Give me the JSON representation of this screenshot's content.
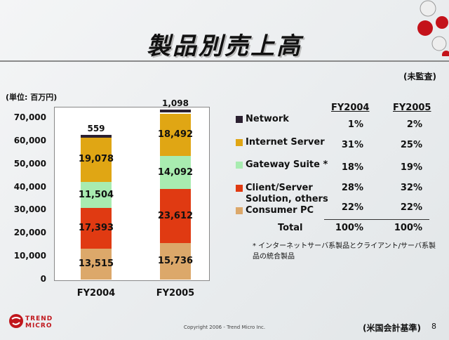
{
  "slide": {
    "title": "製品別売上高",
    "unaudited": "(未監査)",
    "unit": "(単位: 百万円)",
    "footnote": "* インターネットサーバ系製品とクライアント/サーバ系製品の統合製品",
    "basis": "(米国会計基準)",
    "page": "8",
    "copyright": "Copyright 2006 - Trend Micro Inc.",
    "logo_line1": "TREND",
    "logo_line2": "MICRO"
  },
  "colors": {
    "Network": "#2b2030",
    "Internet Server": "#e0a614",
    "Gateway Suite": "#a8ecb0",
    "Client/Server Solution, others": "#e03a12",
    "Consumer PC": "#dca86a"
  },
  "table": {
    "headers": [
      "FY2004",
      "FY2005"
    ],
    "rows": [
      {
        "label": "Network",
        "pct": [
          "1%",
          "2%"
        ]
      },
      {
        "label": "Internet Server",
        "pct": [
          "31%",
          "25%"
        ]
      },
      {
        "label": "Gateway Suite *",
        "pct": [
          "18%",
          "19%"
        ]
      },
      {
        "label": "Client/Server Solution, others",
        "pct": [
          "28%",
          "32%"
        ]
      },
      {
        "label": "Consumer PC",
        "pct": [
          "22%",
          "22%"
        ]
      }
    ],
    "total_label": "Total",
    "total_pct": [
      "100%",
      "100%"
    ]
  },
  "chart_data": {
    "type": "bar",
    "stacked": true,
    "categories": [
      "FY2004",
      "FY2005"
    ],
    "series": [
      {
        "name": "Consumer PC",
        "values": [
          13515,
          15736
        ]
      },
      {
        "name": "Client/Server Solution, others",
        "values": [
          17393,
          23612
        ]
      },
      {
        "name": "Gateway Suite",
        "values": [
          11504,
          14092
        ]
      },
      {
        "name": "Internet Server",
        "values": [
          19078,
          18492
        ]
      },
      {
        "name": "Network",
        "values": [
          559,
          1098
        ]
      }
    ],
    "value_labels": [
      [
        "13,515",
        "17,393",
        "11,504",
        "19,078",
        "559"
      ],
      [
        "15,736",
        "23,612",
        "14,092",
        "18,492",
        "1,098"
      ]
    ],
    "yticks": [
      "0",
      "10,000",
      "20,000",
      "30,000",
      "40,000",
      "50,000",
      "60,000",
      "70,000"
    ],
    "ylim": [
      0,
      70000
    ],
    "grid": false,
    "legend": "right"
  }
}
